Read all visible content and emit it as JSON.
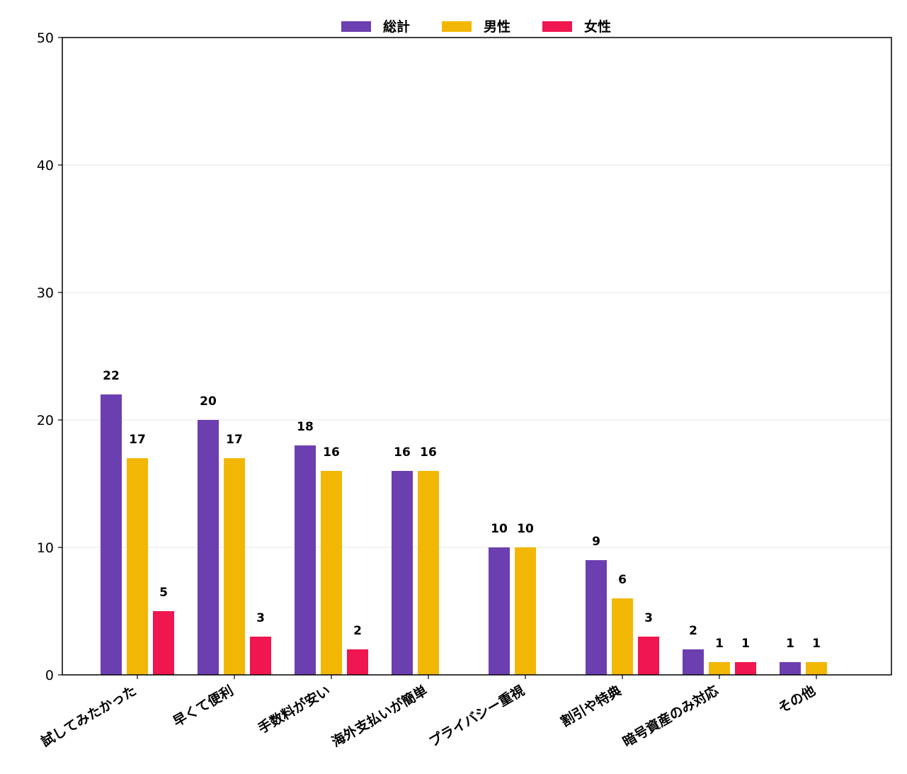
{
  "chart_data": {
    "type": "bar",
    "title": "",
    "xlabel": "",
    "ylabel": "",
    "ylim": [
      0,
      50
    ],
    "yticks": [
      0,
      10,
      20,
      30,
      40,
      50
    ],
    "grid": "horizontal",
    "legend_position": "top-center",
    "categories": [
      "試してみたかった",
      "早くて便利",
      "手数料が安い",
      "海外支払いが簡単",
      "プライバシー重視",
      "割引や特典",
      "暗号資産のみ対応",
      "その他"
    ],
    "series": [
      {
        "name": "総計",
        "color": "#6c3fb0",
        "values": [
          22,
          20,
          18,
          16,
          10,
          9,
          2,
          1
        ]
      },
      {
        "name": "男性",
        "color": "#f2b705",
        "values": [
          17,
          17,
          16,
          16,
          10,
          6,
          1,
          1
        ]
      },
      {
        "name": "女性",
        "color": "#f0164f",
        "values": [
          5,
          3,
          2,
          null,
          null,
          3,
          1,
          null
        ]
      }
    ]
  }
}
